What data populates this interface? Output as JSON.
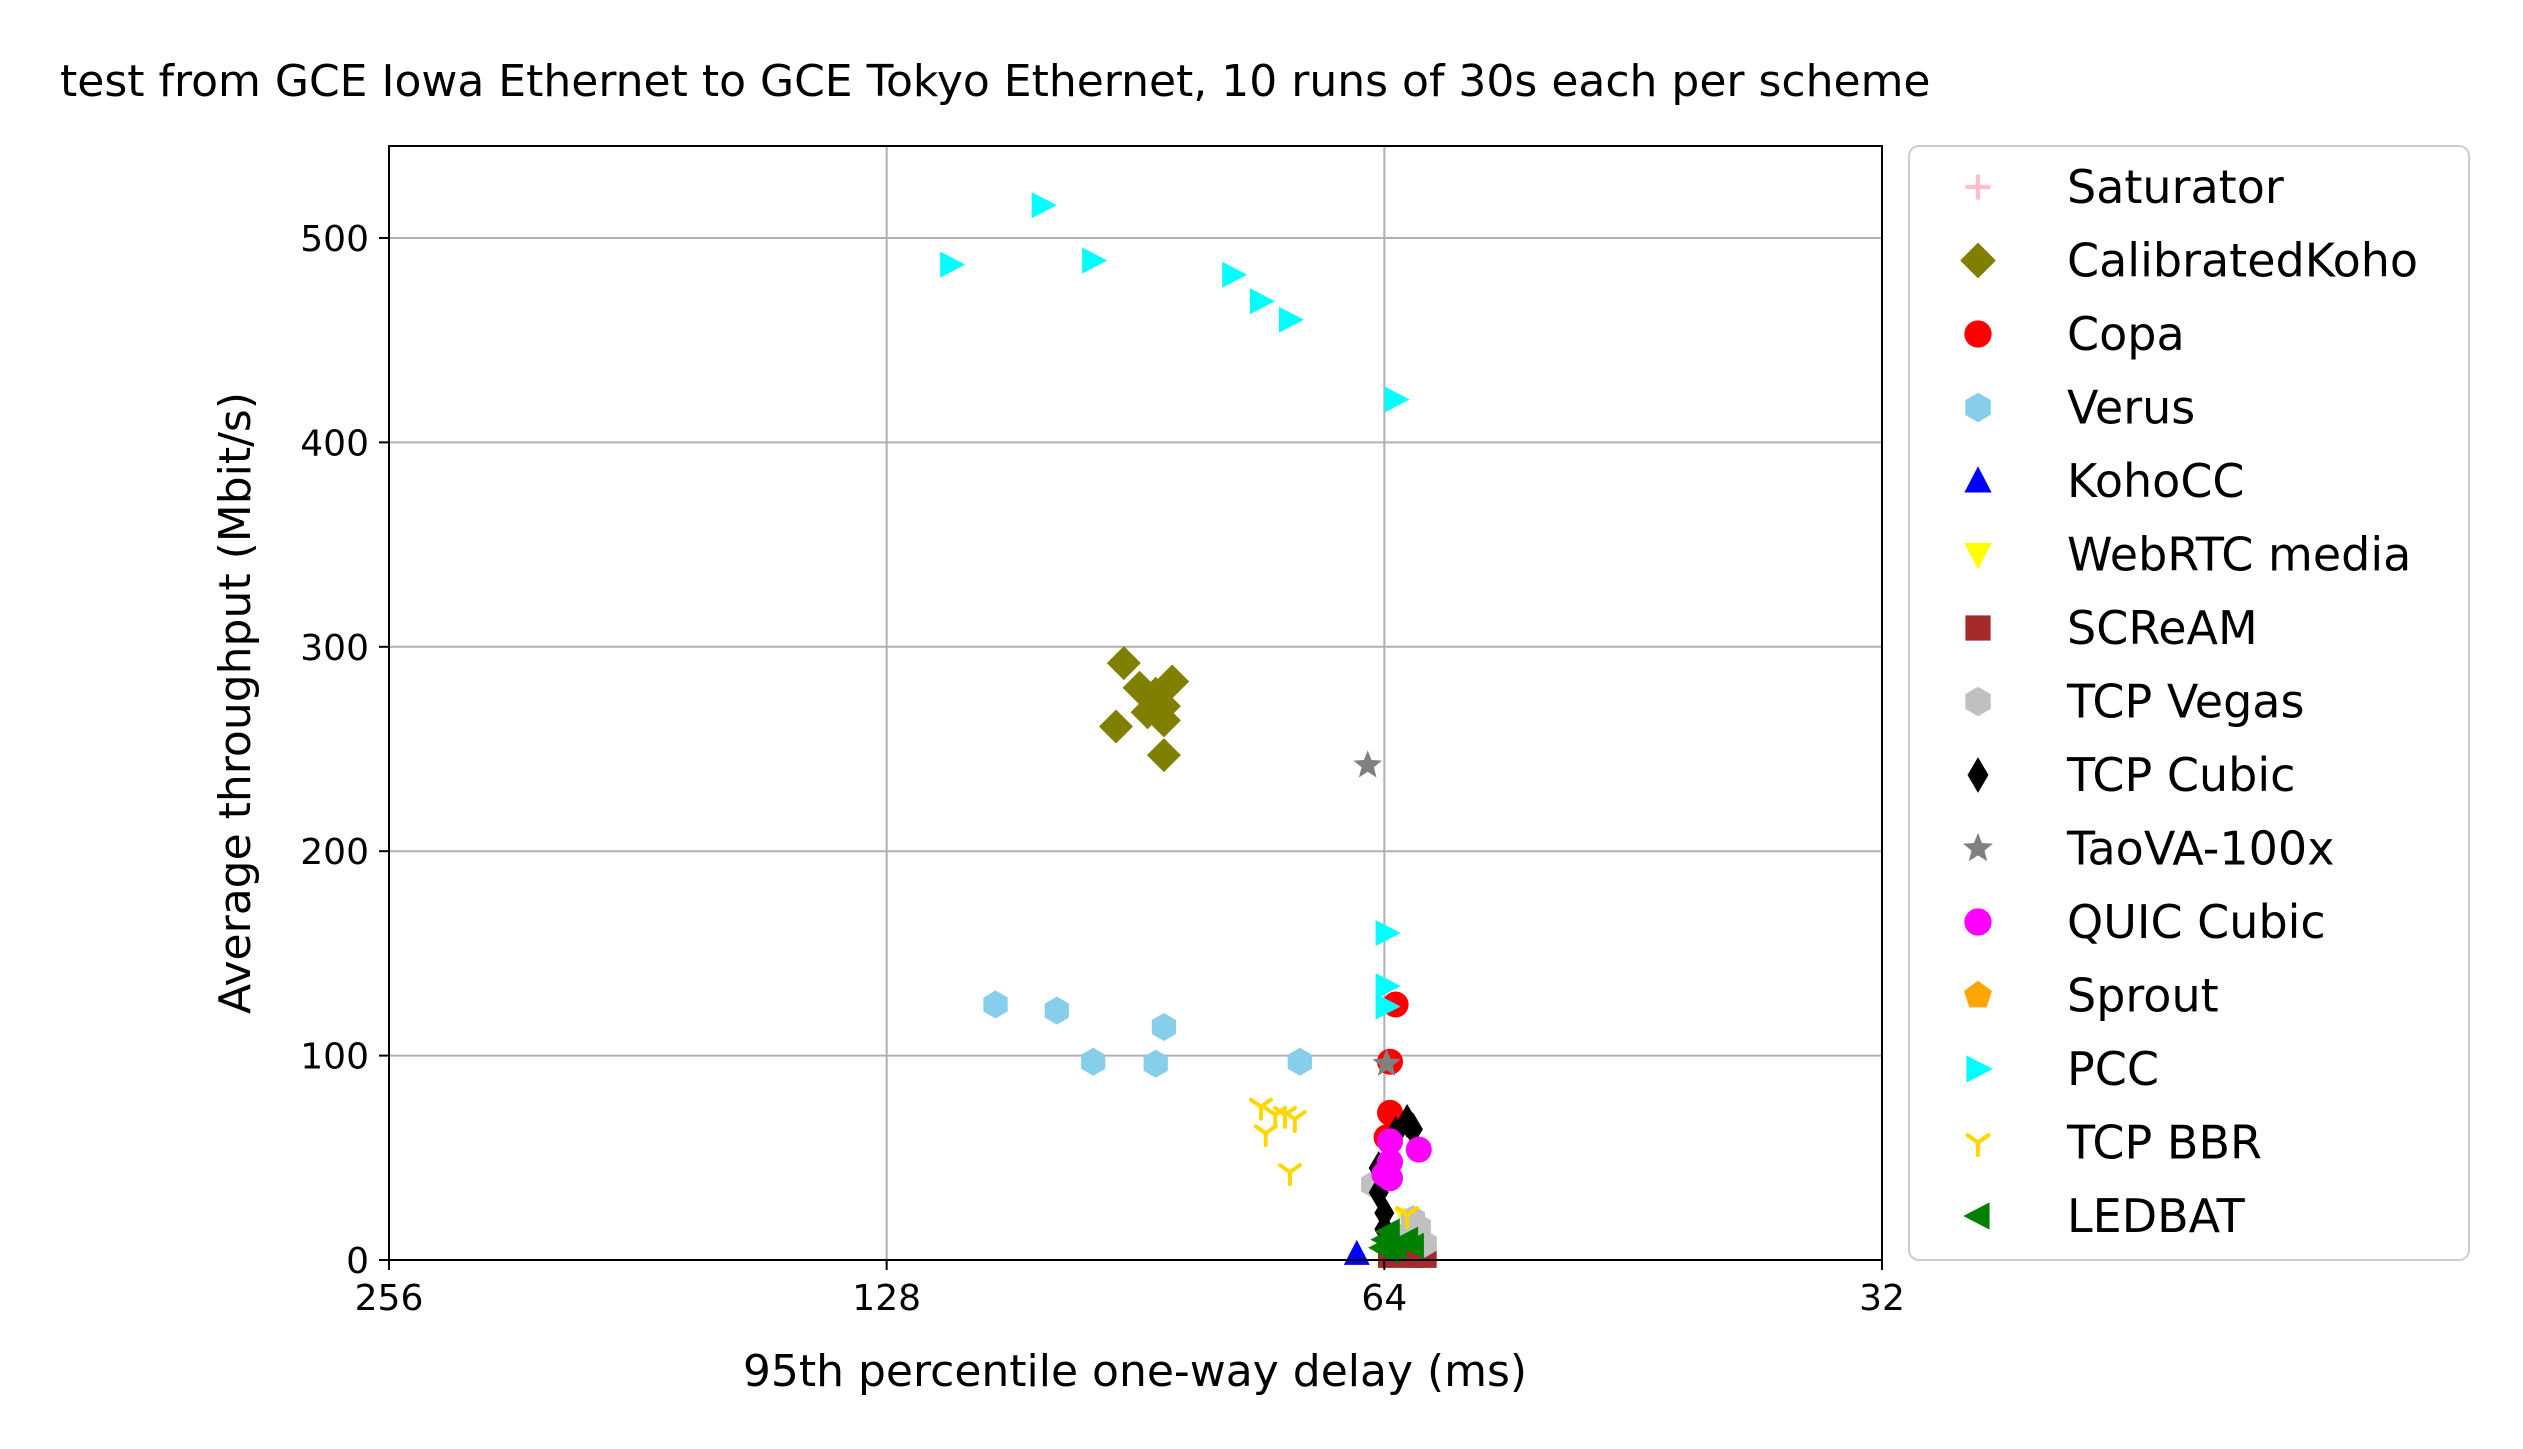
{
  "chart_data": {
    "type": "scatter",
    "title": "test from GCE Iowa Ethernet to GCE Tokyo Ethernet, 10 runs of 30s each per scheme",
    "xlabel": "95th percentile one-way delay (ms)",
    "ylabel": "Average throughput (Mbit/s)",
    "x_scale": "log2",
    "x_inverted": true,
    "xlim": [
      256,
      32
    ],
    "ylim": [
      0,
      545
    ],
    "xticks": [
      "256",
      "128",
      "64",
      "32"
    ],
    "yticks": [
      "0",
      "100",
      "200",
      "300",
      "400",
      "500"
    ],
    "grid": true,
    "legend_position": "outside right",
    "series": [
      {
        "name": "Saturator",
        "marker": "plus",
        "color": "#ffc0cb",
        "points": []
      },
      {
        "name": "CalibratedKoho",
        "marker": "diamond",
        "color": "#808000",
        "points": [
          [
            92,
            292
          ],
          [
            90,
            280
          ],
          [
            88,
            277
          ],
          [
            86,
            283
          ],
          [
            87,
            271
          ],
          [
            89,
            268
          ],
          [
            87,
            264
          ],
          [
            93,
            261
          ],
          [
            87,
            247
          ]
        ]
      },
      {
        "name": "Copa",
        "marker": "circle",
        "color": "#ff0000",
        "points": [
          [
            63,
            125
          ],
          [
            63.5,
            97
          ],
          [
            63.5,
            72
          ],
          [
            63.8,
            60
          ]
        ]
      },
      {
        "name": "Verus",
        "marker": "hexagon",
        "color": "#87ceeb",
        "points": [
          [
            110,
            125
          ],
          [
            101,
            122
          ],
          [
            87,
            114
          ],
          [
            96,
            97
          ],
          [
            88,
            96
          ],
          [
            72,
            97
          ]
        ]
      },
      {
        "name": "KohoCC",
        "marker": "triangle-up",
        "color": "#0000ff",
        "points": [
          [
            66.5,
            3
          ]
        ]
      },
      {
        "name": "WebRTC media",
        "marker": "triangle-down",
        "color": "#ffff00",
        "points": [
          [
            62,
            20
          ]
        ]
      },
      {
        "name": "SCReAM",
        "marker": "square",
        "color": "#a52a2a",
        "points": [
          [
            63.5,
            2
          ],
          [
            61.5,
            2
          ],
          [
            60.5,
            2
          ]
        ]
      },
      {
        "name": "TCP Vegas",
        "marker": "hexagon",
        "color": "#c0c0c0",
        "points": [
          [
            65,
            37
          ],
          [
            61.5,
            20
          ],
          [
            61,
            16
          ],
          [
            60.5,
            8
          ],
          [
            63,
            12
          ]
        ]
      },
      {
        "name": "TCP Cubic",
        "marker": "thin-diamond",
        "color": "#000000",
        "points": [
          [
            62,
            68
          ],
          [
            61.5,
            64
          ],
          [
            63,
            62
          ],
          [
            64.5,
            45
          ],
          [
            64.5,
            33
          ],
          [
            64,
            23
          ],
          [
            64,
            15
          ],
          [
            63.5,
            10
          ]
        ]
      },
      {
        "name": "TaoVA-100x",
        "marker": "star",
        "color": "#808080",
        "points": [
          [
            65.5,
            242
          ],
          [
            63.8,
            96
          ]
        ]
      },
      {
        "name": "QUIC Cubic",
        "marker": "circle",
        "color": "#ff00ff",
        "points": [
          [
            63.5,
            58
          ],
          [
            61,
            54
          ],
          [
            63.5,
            48
          ],
          [
            64,
            42
          ],
          [
            63.5,
            40
          ]
        ]
      },
      {
        "name": "Sprout",
        "marker": "pentagon",
        "color": "#ffa500",
        "points": []
      },
      {
        "name": "PCC",
        "marker": "triangle-right",
        "color": "#00ffff",
        "points": [
          [
            117,
            487
          ],
          [
            103,
            516
          ],
          [
            96,
            489
          ],
          [
            79,
            482
          ],
          [
            76,
            469
          ],
          [
            73,
            460
          ],
          [
            63,
            421
          ],
          [
            63.8,
            160
          ],
          [
            63.8,
            134
          ],
          [
            63.8,
            124
          ]
        ]
      },
      {
        "name": "TCP BBR",
        "marker": "tri-down",
        "color": "#ffd700",
        "points": [
          [
            76,
            75
          ],
          [
            74.5,
            71
          ],
          [
            73.5,
            71
          ],
          [
            72.5,
            69
          ],
          [
            75.5,
            62
          ],
          [
            73,
            43
          ],
          [
            62,
            22
          ]
        ]
      },
      {
        "name": "LEDBAT",
        "marker": "triangle-left",
        "color": "#008000",
        "points": [
          [
            63.6,
            14
          ],
          [
            64,
            10
          ],
          [
            62,
            10
          ],
          [
            61.5,
            7
          ],
          [
            63,
            6
          ],
          [
            64.2,
            6
          ],
          [
            63.6,
            4
          ]
        ]
      }
    ]
  }
}
